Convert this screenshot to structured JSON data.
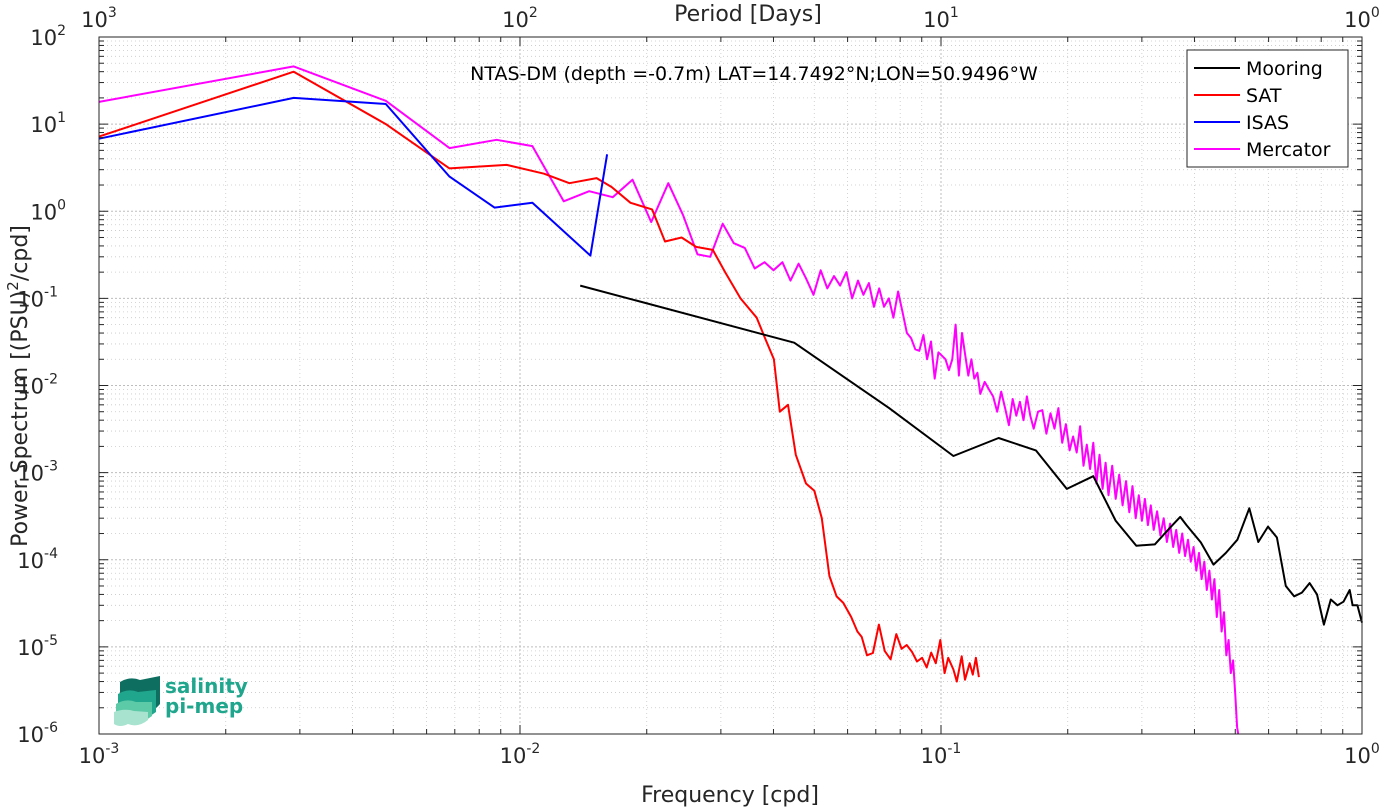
{
  "chart_data": {
    "type": "line",
    "title": "NTAS-DM (depth =-0.7m) LAT=14.7492°N;LON=50.9496°W",
    "xlabel": "Frequency [cpd]",
    "ylabel": "Power Spectrum [(PSU)²/cpd]",
    "ylabel_parts": {
      "base": "Power Spectrum [(PSU)",
      "sup": "2",
      "tail": "/cpd]"
    },
    "top_xlabel": "Period [Days]",
    "xscale": "log",
    "yscale": "log",
    "xlim": [
      0.001,
      1
    ],
    "ylim": [
      1e-06,
      100
    ],
    "grid": true,
    "legend_position": "top-right",
    "x_ticks": [
      {
        "value": 0.001,
        "base": "10",
        "exp": "-3"
      },
      {
        "value": 0.01,
        "base": "10",
        "exp": "-2"
      },
      {
        "value": 0.1,
        "base": "10",
        "exp": "-1"
      },
      {
        "value": 1,
        "base": "10",
        "exp": "0"
      }
    ],
    "top_ticks": [
      {
        "freq": 0.001,
        "base": "10",
        "exp": "3"
      },
      {
        "freq": 0.01,
        "base": "10",
        "exp": "2"
      },
      {
        "freq": 0.1,
        "base": "10",
        "exp": "1"
      },
      {
        "freq": 1,
        "base": "10",
        "exp": "0"
      }
    ],
    "y_ticks": [
      {
        "value": 100,
        "base": "10",
        "exp": "2"
      },
      {
        "value": 10,
        "base": "10",
        "exp": "1"
      },
      {
        "value": 1,
        "base": "10",
        "exp": "0"
      },
      {
        "value": 0.1,
        "base": "10",
        "exp": "-1"
      },
      {
        "value": 0.01,
        "base": "10",
        "exp": "-2"
      },
      {
        "value": 0.001,
        "base": "10",
        "exp": "-3"
      },
      {
        "value": 0.0001,
        "base": "10",
        "exp": "-4"
      },
      {
        "value": 1e-05,
        "base": "10",
        "exp": "-5"
      },
      {
        "value": 1e-06,
        "base": "10",
        "exp": "-6"
      }
    ],
    "series": [
      {
        "name": "Mooring",
        "color": "#000000",
        "points": [
          [
            0.0139,
            0.14
          ],
          [
            0.0448,
            0.031
          ],
          [
            0.0753,
            0.0055
          ],
          [
            0.107,
            0.00155
          ],
          [
            0.137,
            0.0025
          ],
          [
            0.168,
            0.0018
          ],
          [
            0.199,
            0.00065
          ],
          [
            0.23,
            0.00091
          ],
          [
            0.26,
            0.00028
          ],
          [
            0.291,
            0.000145
          ],
          [
            0.322,
            0.00015
          ],
          [
            0.352,
            0.00024
          ],
          [
            0.37,
            0.00031
          ],
          [
            0.383,
            0.00025
          ],
          [
            0.414,
            0.000158
          ],
          [
            0.444,
            8.8e-05
          ],
          [
            0.475,
            0.00012
          ],
          [
            0.506,
            0.00017
          ],
          [
            0.54,
            0.00039
          ],
          [
            0.567,
            0.00016
          ],
          [
            0.598,
            0.00024
          ],
          [
            0.628,
            0.00018
          ],
          [
            0.659,
            5e-05
          ],
          [
            0.69,
            3.8e-05
          ],
          [
            0.72,
            4.2e-05
          ],
          [
            0.751,
            5.4e-05
          ],
          [
            0.782,
            4e-05
          ],
          [
            0.812,
            1.8e-05
          ],
          [
            0.843,
            3.5e-05
          ],
          [
            0.874,
            3e-05
          ],
          [
            0.904,
            3.3e-05
          ],
          [
            0.935,
            4.5e-05
          ],
          [
            0.95,
            3e-05
          ],
          [
            0.975,
            3e-05
          ],
          [
            1.0,
            1.9e-05
          ]
        ]
      },
      {
        "name": "SAT",
        "color": "#ff0000",
        "points": [
          [
            0.001,
            7.2
          ],
          [
            0.0029,
            40
          ],
          [
            0.0048,
            10
          ],
          [
            0.0068,
            3.1
          ],
          [
            0.0093,
            3.4
          ],
          [
            0.0114,
            2.7
          ],
          [
            0.0131,
            2.1
          ],
          [
            0.0152,
            2.4
          ],
          [
            0.0165,
            1.9
          ],
          [
            0.0183,
            1.25
          ],
          [
            0.0206,
            1.05
          ],
          [
            0.0221,
            0.45
          ],
          [
            0.0242,
            0.5
          ],
          [
            0.0262,
            0.39
          ],
          [
            0.0287,
            0.36
          ],
          [
            0.0307,
            0.2
          ],
          [
            0.0334,
            0.1
          ],
          [
            0.0365,
            0.06
          ],
          [
            0.0382,
            0.035
          ],
          [
            0.0401,
            0.02
          ],
          [
            0.0414,
            0.005
          ],
          [
            0.0433,
            0.006
          ],
          [
            0.0452,
            0.0016
          ],
          [
            0.0478,
            0.00075
          ],
          [
            0.05,
            0.00062
          ],
          [
            0.0521,
            0.0003
          ],
          [
            0.0543,
            6.5e-05
          ],
          [
            0.0565,
            3.8e-05
          ],
          [
            0.0586,
            3.2e-05
          ],
          [
            0.0612,
            2.2e-05
          ],
          [
            0.0633,
            1.5e-05
          ],
          [
            0.0648,
            1.3e-05
          ],
          [
            0.0667,
            8e-06
          ],
          [
            0.0689,
            8.5e-06
          ],
          [
            0.0712,
            1.8e-05
          ],
          [
            0.0735,
            9e-06
          ],
          [
            0.0759,
            7.2e-06
          ],
          [
            0.0783,
            1.4e-05
          ],
          [
            0.0806,
            9.5e-06
          ],
          [
            0.0829,
            1.05e-05
          ],
          [
            0.0853,
            8.8e-06
          ],
          [
            0.0877,
            6.8e-06
          ],
          [
            0.0902,
            7.5e-06
          ],
          [
            0.0925,
            5.8e-06
          ],
          [
            0.0948,
            8.6e-06
          ],
          [
            0.0972,
            6.5e-06
          ],
          [
            0.0996,
            1.2e-05
          ],
          [
            0.102,
            5e-06
          ],
          [
            0.104,
            7.5e-06
          ],
          [
            0.107,
            5.5e-06
          ],
          [
            0.109,
            4e-06
          ],
          [
            0.112,
            7.8e-06
          ],
          [
            0.114,
            4.2e-06
          ],
          [
            0.117,
            6.5e-06
          ],
          [
            0.119,
            4.8e-06
          ],
          [
            0.121,
            7.5e-06
          ],
          [
            0.123,
            4.5e-06
          ]
        ]
      },
      {
        "name": "ISAS",
        "color": "#0000ff",
        "points": [
          [
            0.001,
            6.8
          ],
          [
            0.0029,
            20
          ],
          [
            0.0048,
            17
          ],
          [
            0.0068,
            2.5
          ],
          [
            0.0087,
            1.1
          ],
          [
            0.0107,
            1.25
          ],
          [
            0.0147,
            0.31
          ],
          [
            0.0161,
            4.5
          ]
        ]
      },
      {
        "name": "Mercator",
        "color": "#ff00ff",
        "points": [
          [
            0.001,
            18
          ],
          [
            0.0029,
            46
          ],
          [
            0.0048,
            18.5
          ],
          [
            0.0068,
            5.3
          ],
          [
            0.0088,
            6.6
          ],
          [
            0.0107,
            5.6
          ],
          [
            0.0127,
            1.3
          ],
          [
            0.0146,
            1.7
          ],
          [
            0.0166,
            1.45
          ],
          [
            0.0185,
            2.3
          ],
          [
            0.0205,
            0.75
          ],
          [
            0.0225,
            2.1
          ],
          [
            0.0244,
            0.9
          ],
          [
            0.0264,
            0.32
          ],
          [
            0.0283,
            0.3
          ],
          [
            0.0303,
            0.72
          ],
          [
            0.0322,
            0.43
          ],
          [
            0.0342,
            0.38
          ],
          [
            0.0361,
            0.22
          ],
          [
            0.0381,
            0.26
          ],
          [
            0.04,
            0.21
          ],
          [
            0.042,
            0.26
          ],
          [
            0.0439,
            0.16
          ],
          [
            0.0459,
            0.25
          ],
          [
            0.0478,
            0.17
          ],
          [
            0.0498,
            0.11
          ],
          [
            0.0518,
            0.21
          ],
          [
            0.0537,
            0.13
          ],
          [
            0.0557,
            0.18
          ],
          [
            0.0576,
            0.14
          ],
          [
            0.0596,
            0.2
          ],
          [
            0.0615,
            0.1
          ],
          [
            0.0635,
            0.16
          ],
          [
            0.0654,
            0.11
          ],
          [
            0.0674,
            0.15
          ],
          [
            0.0693,
            0.08
          ],
          [
            0.0713,
            0.13
          ],
          [
            0.0732,
            0.08
          ],
          [
            0.0752,
            0.1
          ],
          [
            0.0771,
            0.06
          ],
          [
            0.0791,
            0.12
          ],
          [
            0.081,
            0.07
          ],
          [
            0.083,
            0.04
          ],
          [
            0.0849,
            0.035
          ],
          [
            0.0869,
            0.026
          ],
          [
            0.0888,
            0.025
          ],
          [
            0.0908,
            0.038
          ],
          [
            0.0927,
            0.02
          ],
          [
            0.0947,
            0.032
          ],
          [
            0.0966,
            0.012
          ],
          [
            0.0986,
            0.024
          ],
          [
            0.1005,
            0.022
          ],
          [
            0.1025,
            0.02
          ],
          [
            0.1044,
            0.015
          ],
          [
            0.1064,
            0.02
          ],
          [
            0.1083,
            0.05
          ],
          [
            0.1103,
            0.013
          ],
          [
            0.1122,
            0.04
          ],
          [
            0.1142,
            0.022
          ],
          [
            0.1161,
            0.013
          ],
          [
            0.1181,
            0.02
          ],
          [
            0.12,
            0.012
          ],
          [
            0.122,
            0.014
          ],
          [
            0.124,
            0.008
          ],
          [
            0.127,
            0.011
          ],
          [
            0.13,
            0.009
          ],
          [
            0.133,
            0.0075
          ],
          [
            0.136,
            0.005
          ],
          [
            0.139,
            0.0085
          ],
          [
            0.142,
            0.0055
          ],
          [
            0.145,
            0.0035
          ],
          [
            0.148,
            0.007
          ],
          [
            0.151,
            0.0045
          ],
          [
            0.154,
            0.0065
          ],
          [
            0.157,
            0.004
          ],
          [
            0.16,
            0.0075
          ],
          [
            0.163,
            0.0045
          ],
          [
            0.166,
            0.0032
          ],
          [
            0.17,
            0.005
          ],
          [
            0.174,
            0.0052
          ],
          [
            0.178,
            0.0028
          ],
          [
            0.182,
            0.0048
          ],
          [
            0.186,
            0.0032
          ],
          [
            0.19,
            0.0055
          ],
          [
            0.194,
            0.0022
          ],
          [
            0.198,
            0.0036
          ],
          [
            0.202,
            0.0018
          ],
          [
            0.206,
            0.0026
          ],
          [
            0.21,
            0.0017
          ],
          [
            0.214,
            0.0034
          ],
          [
            0.218,
            0.0012
          ],
          [
            0.222,
            0.0021
          ],
          [
            0.226,
            0.0011
          ],
          [
            0.23,
            0.0022
          ],
          [
            0.234,
            0.00075
          ],
          [
            0.238,
            0.0016
          ],
          [
            0.242,
            0.00065
          ],
          [
            0.246,
            0.0013
          ],
          [
            0.25,
            0.00055
          ],
          [
            0.255,
            0.0012
          ],
          [
            0.26,
            0.0005
          ],
          [
            0.265,
            0.00095
          ],
          [
            0.27,
            0.00042
          ],
          [
            0.275,
            0.0008
          ],
          [
            0.28,
            0.00035
          ],
          [
            0.285,
            0.0007
          ],
          [
            0.29,
            0.0003
          ],
          [
            0.295,
            0.00055
          ],
          [
            0.3,
            0.00028
          ],
          [
            0.305,
            0.0005
          ],
          [
            0.31,
            0.00025
          ],
          [
            0.315,
            0.00042
          ],
          [
            0.32,
            0.00022
          ],
          [
            0.326,
            0.00036
          ],
          [
            0.332,
            0.00019
          ],
          [
            0.338,
            0.0003
          ],
          [
            0.344,
            0.00016
          ],
          [
            0.35,
            0.00026
          ],
          [
            0.356,
            0.00014
          ],
          [
            0.362,
            0.00022
          ],
          [
            0.368,
            0.00012
          ],
          [
            0.374,
            0.0002
          ],
          [
            0.38,
            0.00011
          ],
          [
            0.386,
            0.00017
          ],
          [
            0.392,
            9.5e-05
          ],
          [
            0.398,
            0.00014
          ],
          [
            0.404,
            7.5e-05
          ],
          [
            0.41,
            0.00012
          ],
          [
            0.416,
            6e-05
          ],
          [
            0.422,
            9.5e-05
          ],
          [
            0.428,
            4.5e-05
          ],
          [
            0.434,
            7.5e-05
          ],
          [
            0.44,
            3.5e-05
          ],
          [
            0.446,
            6e-05
          ],
          [
            0.452,
            2.2e-05
          ],
          [
            0.458,
            4.5e-05
          ],
          [
            0.464,
            1.5e-05
          ],
          [
            0.47,
            2.5e-05
          ],
          [
            0.476,
            8e-06
          ],
          [
            0.482,
            1.2e-05
          ],
          [
            0.488,
            5e-06
          ],
          [
            0.494,
            7e-06
          ],
          [
            0.5,
            2.8e-06
          ],
          [
            0.505,
            1.2e-06
          ],
          [
            0.508,
            1e-06
          ]
        ]
      }
    ]
  },
  "logo": {
    "line1": "salinity",
    "line2": "pi-mep",
    "colors": [
      "#0e6f61",
      "#1fa68c",
      "#5cc9a7",
      "#a8e3cf"
    ]
  }
}
